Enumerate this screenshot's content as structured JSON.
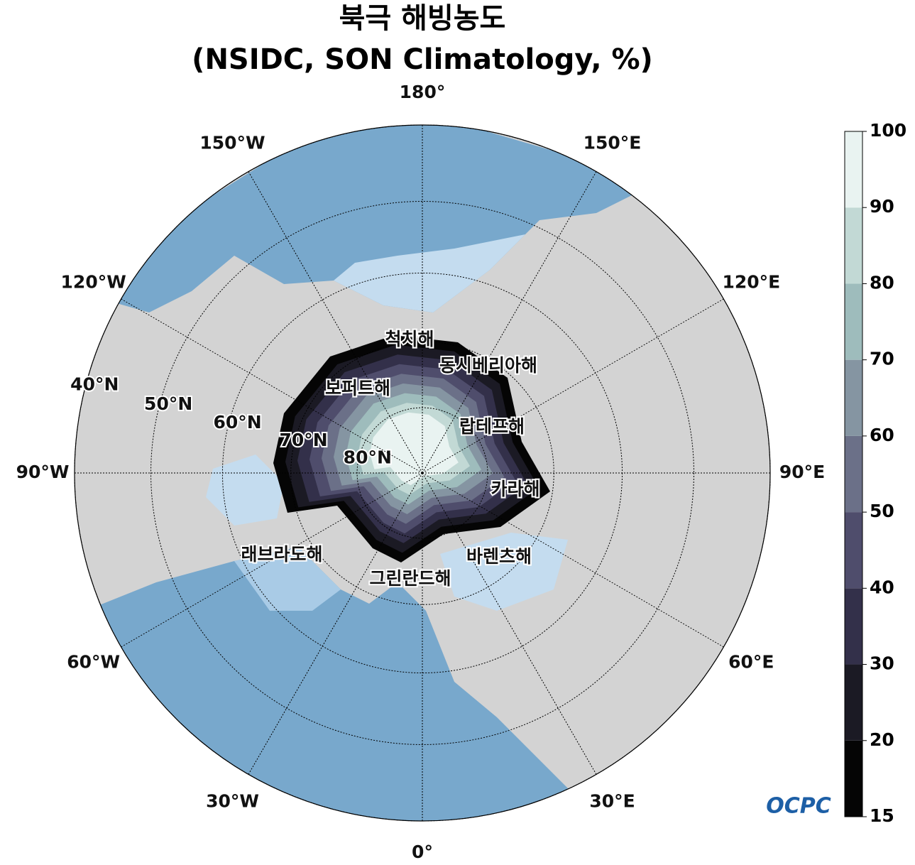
{
  "header": {
    "title": [
      "북극 해빙농도",
      "(NSIDC, SON Climatology, %)"
    ]
  },
  "map": {
    "meridians": [
      {
        "value": 180,
        "label": "180°"
      },
      {
        "value": 150,
        "label": "150°E"
      },
      {
        "value": 120,
        "label": "120°E"
      },
      {
        "value": 90,
        "label": "90°E"
      },
      {
        "value": 60,
        "label": "60°E"
      },
      {
        "value": 30,
        "label": "30°E"
      },
      {
        "value": 0,
        "label": "0°"
      },
      {
        "value": -30,
        "label": "30°W"
      },
      {
        "value": -60,
        "label": "60°W"
      },
      {
        "value": -90,
        "label": "90°W"
      },
      {
        "value": -120,
        "label": "120°W"
      },
      {
        "value": -150,
        "label": "150°W"
      }
    ],
    "parallels": [
      {
        "value": 80,
        "label": "80°N"
      },
      {
        "value": 70,
        "label": "70°N"
      },
      {
        "value": 60,
        "label": "60°N"
      },
      {
        "value": 50,
        "label": "50°N"
      },
      {
        "value": 40,
        "label": "40°N"
      }
    ],
    "seas": [
      "척치해",
      "동시베리아해",
      "보퍼트해",
      "랍테프해",
      "카라해",
      "래브라도해",
      "바렌츠해",
      "그린란드해"
    ]
  },
  "colorbar": {
    "ticks": [
      15,
      20,
      30,
      40,
      50,
      60,
      70,
      80,
      90,
      100
    ],
    "colors": [
      "#050505",
      "#1b1a24",
      "#33304a",
      "#4f4d6c",
      "#6b7088",
      "#8595a2",
      "#9ebcbc",
      "#c2d9d5",
      "#e9f3f1"
    ]
  },
  "logo": "OCPC"
}
